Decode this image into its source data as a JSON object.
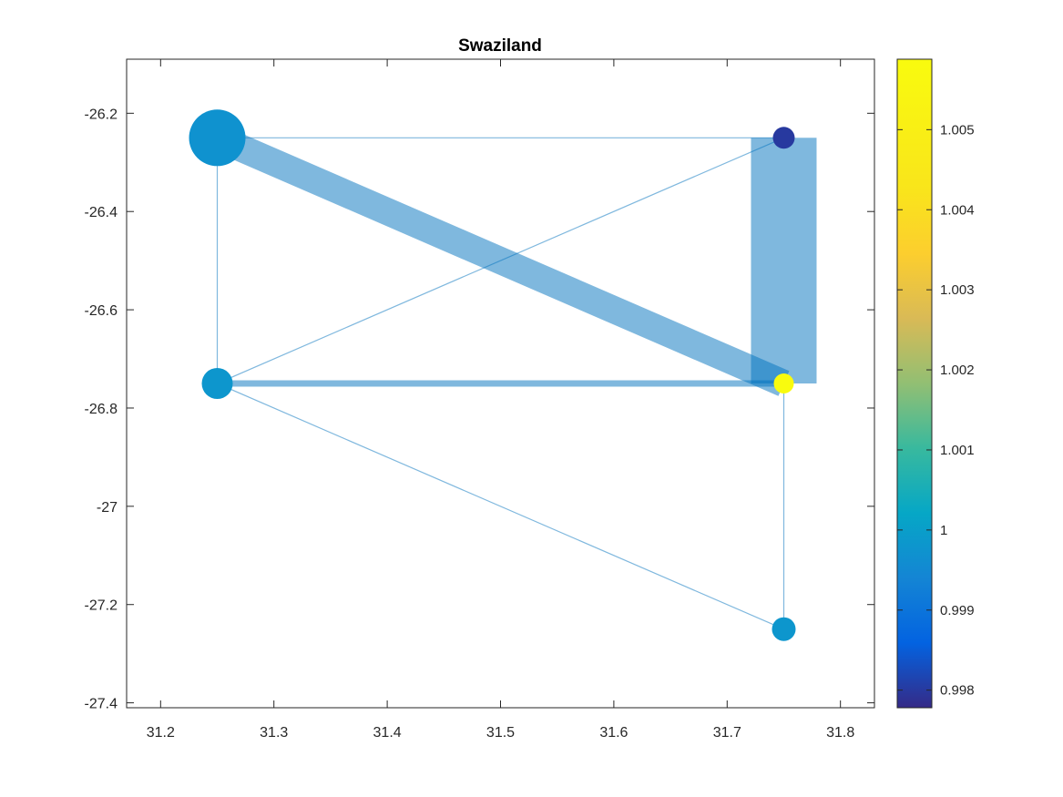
{
  "chart_data": {
    "type": "network",
    "title": "Swaziland",
    "xlabel": "",
    "ylabel": "",
    "xlim": [
      31.17,
      31.83
    ],
    "ylim": [
      -27.41,
      -26.09
    ],
    "x_ticks": [
      31.2,
      31.3,
      31.4,
      31.5,
      31.6,
      31.7,
      31.8
    ],
    "x_tick_labels": [
      "31.2",
      "31.3",
      "31.4",
      "31.5",
      "31.6",
      "31.7",
      "31.8"
    ],
    "y_ticks": [
      -26.2,
      -26.4,
      -26.6,
      -26.8,
      -27.0,
      -27.2,
      -27.4
    ],
    "y_tick_labels": [
      "-26.2",
      "-26.4",
      "-26.6",
      "-26.8",
      "-27",
      "-27.2",
      "-27.4"
    ],
    "edge_color": "#0072BD",
    "nodes": [
      {
        "id": "A",
        "x": 31.25,
        "y": -26.25,
        "value": 0.9997,
        "size": 62
      },
      {
        "id": "B",
        "x": 31.75,
        "y": -26.25,
        "value": 0.998,
        "size": 24
      },
      {
        "id": "C",
        "x": 31.25,
        "y": -26.75,
        "value": 0.9998,
        "size": 34
      },
      {
        "id": "D",
        "x": 31.75,
        "y": -26.75,
        "value": 1.0059,
        "size": 22
      },
      {
        "id": "E",
        "x": 31.75,
        "y": -27.25,
        "value": 0.9998,
        "size": 26
      }
    ],
    "edges": [
      {
        "from": "A",
        "to": "B",
        "width": 1.2
      },
      {
        "from": "A",
        "to": "C",
        "width": 1.2
      },
      {
        "from": "A",
        "to": "D",
        "width": 30
      },
      {
        "from": "C",
        "to": "B",
        "width": 1.2
      },
      {
        "from": "C",
        "to": "D",
        "width": 7
      },
      {
        "from": "C",
        "to": "E",
        "width": 1.2
      },
      {
        "from": "B",
        "to": "D",
        "width": 72
      },
      {
        "from": "D",
        "to": "E",
        "width": 1.2
      }
    ],
    "colorbar": {
      "colormap": "parula",
      "range": [
        0.99778,
        1.00588
      ],
      "ticks": [
        0.998,
        0.999,
        1.0,
        1.001,
        1.002,
        1.003,
        1.004,
        1.005
      ],
      "tick_labels": [
        "0.998",
        "0.999",
        "1",
        "1.001",
        "1.002",
        "1.003",
        "1.004",
        "1.005"
      ],
      "placement": "right"
    },
    "grid": false
  }
}
